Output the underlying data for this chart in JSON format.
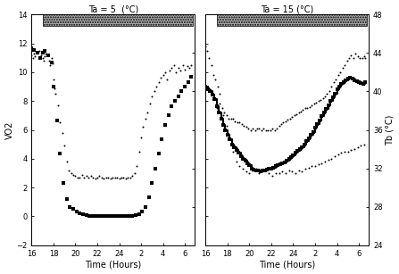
{
  "title_left": "Ta = 5  (°C)",
  "title_right": "Ta = 15 (°C)",
  "xlabel": "Time (Hours)",
  "ylabel_left": "VO2",
  "ylabel_right": "Tb (°C)",
  "panel1_vo2_x": [
    16.0,
    16.1,
    16.2,
    16.3,
    16.5,
    16.7,
    16.9,
    17.0,
    17.1,
    17.2,
    17.3,
    17.5,
    17.6,
    17.7,
    17.8,
    17.9,
    18.0,
    18.1,
    18.2,
    18.4,
    18.6,
    18.8,
    19.0,
    19.2,
    19.4,
    19.6,
    19.8,
    20.0,
    20.2,
    20.4,
    20.6,
    20.8,
    21.0,
    21.2,
    21.4,
    21.6,
    21.8,
    22.0,
    22.2,
    22.4,
    22.6,
    22.8,
    23.0,
    23.2,
    23.4,
    23.6,
    23.8,
    24.0,
    24.2,
    24.4,
    24.6,
    24.8,
    25.0,
    25.2,
    25.4,
    25.6,
    25.8,
    26.0,
    26.2,
    26.4,
    26.6,
    26.8,
    27.0,
    27.2,
    27.4,
    27.6,
    27.8,
    28.0,
    28.2,
    28.4,
    28.6,
    28.8,
    29.0,
    29.2,
    29.4,
    29.6,
    29.8,
    30.0,
    30.2,
    30.4,
    30.6
  ],
  "panel1_vo2_y": [
    11.2,
    11.0,
    11.3,
    11.1,
    11.4,
    11.5,
    11.2,
    11.0,
    10.8,
    11.1,
    11.3,
    11.2,
    10.8,
    10.5,
    11.0,
    10.6,
    9.5,
    8.9,
    8.5,
    7.7,
    6.5,
    5.8,
    4.9,
    3.8,
    3.2,
    3.0,
    2.9,
    2.8,
    2.7,
    2.7,
    2.9,
    2.7,
    2.8,
    2.7,
    2.8,
    2.7,
    2.6,
    2.7,
    2.8,
    2.7,
    2.6,
    2.7,
    2.7,
    2.6,
    2.7,
    2.7,
    2.7,
    2.6,
    2.7,
    2.7,
    2.6,
    2.7,
    2.7,
    2.8,
    3.0,
    3.5,
    4.5,
    5.5,
    6.2,
    6.8,
    7.2,
    7.8,
    8.3,
    8.7,
    9.0,
    9.3,
    9.6,
    9.8,
    10.0,
    9.5,
    10.1,
    10.3,
    10.5,
    10.0,
    10.3,
    10.1,
    10.5,
    10.2,
    10.4,
    10.3,
    10.5
  ],
  "panel1_tb_x": [
    16.0,
    16.2,
    16.5,
    16.8,
    17.0,
    17.2,
    17.5,
    17.8,
    18.0,
    18.3,
    18.6,
    18.9,
    19.2,
    19.5,
    19.8,
    20.1,
    20.4,
    20.7,
    21.0,
    21.3,
    21.6,
    21.9,
    22.2,
    22.5,
    22.8,
    23.1,
    23.4,
    23.7,
    24.0,
    24.3,
    24.6,
    24.9,
    25.2,
    25.5,
    25.8,
    26.1,
    26.4,
    26.7,
    27.0,
    27.3,
    27.6,
    27.9,
    28.2,
    28.5,
    28.8,
    29.1,
    29.4,
    29.7,
    30.0,
    30.3,
    30.6
  ],
  "panel1_tb_y": [
    44.5,
    44.3,
    44.0,
    43.5,
    44.0,
    44.2,
    43.8,
    43.0,
    40.5,
    37.0,
    33.5,
    30.5,
    28.8,
    28.0,
    27.8,
    27.5,
    27.3,
    27.2,
    27.1,
    27.0,
    27.0,
    27.0,
    27.0,
    27.0,
    27.0,
    27.0,
    27.0,
    27.0,
    27.0,
    27.0,
    27.0,
    27.0,
    27.0,
    27.1,
    27.2,
    27.5,
    28.0,
    29.0,
    30.5,
    32.0,
    33.5,
    35.0,
    36.5,
    37.5,
    38.5,
    39.0,
    39.5,
    40.0,
    40.5,
    41.0,
    41.5
  ],
  "panel2_vo2_x": [
    16.0,
    16.1,
    16.3,
    16.5,
    16.7,
    16.9,
    17.1,
    17.3,
    17.5,
    17.7,
    17.9,
    18.1,
    18.3,
    18.5,
    18.7,
    18.9,
    19.1,
    19.3,
    19.5,
    19.7,
    19.9,
    20.1,
    20.3,
    20.5,
    20.7,
    20.9,
    21.1,
    21.3,
    21.5,
    21.7,
    21.9,
    22.1,
    22.3,
    22.5,
    22.7,
    22.9,
    23.1,
    23.3,
    23.5,
    23.7,
    23.9,
    24.1,
    24.3,
    24.5,
    24.7,
    24.9,
    25.1,
    25.3,
    25.5,
    25.7,
    25.9,
    26.1,
    26.3,
    26.5,
    26.7,
    26.9,
    27.1,
    27.3,
    27.5,
    27.7,
    27.9,
    28.1,
    28.3,
    28.5,
    28.7,
    28.9,
    29.1,
    29.3,
    29.5,
    29.7,
    29.9,
    30.1,
    30.3,
    30.5,
    30.6
  ],
  "panel2_vo2_y": [
    11.8,
    11.5,
    11.0,
    10.5,
    9.8,
    9.5,
    9.0,
    8.5,
    7.5,
    7.2,
    7.0,
    6.8,
    6.8,
    6.8,
    6.6,
    6.5,
    6.5,
    6.4,
    6.3,
    6.2,
    6.1,
    6.0,
    6.1,
    6.0,
    6.1,
    6.1,
    6.0,
    6.1,
    6.0,
    6.0,
    6.0,
    6.1,
    6.0,
    6.1,
    6.3,
    6.4,
    6.5,
    6.6,
    6.7,
    6.8,
    6.9,
    7.0,
    7.1,
    7.2,
    7.3,
    7.4,
    7.5,
    7.5,
    7.6,
    7.7,
    7.8,
    7.9,
    8.0,
    8.1,
    8.2,
    8.3,
    8.5,
    8.7,
    9.0,
    9.3,
    9.5,
    9.8,
    10.0,
    10.3,
    10.5,
    10.8,
    11.0,
    11.2,
    11.0,
    11.3,
    11.1,
    11.0,
    11.0,
    11.1,
    11.0
  ],
  "panel2_tb_x": [
    16.0,
    16.2,
    16.4,
    16.6,
    16.8,
    17.0,
    17.2,
    17.4,
    17.6,
    17.8,
    18.0,
    18.2,
    18.4,
    18.6,
    18.8,
    19.0,
    19.2,
    19.4,
    19.6,
    19.8,
    20.0,
    20.2,
    20.4,
    20.6,
    20.8,
    21.0,
    21.2,
    21.4,
    21.6,
    21.8,
    22.0,
    22.2,
    22.4,
    22.6,
    22.8,
    23.0,
    23.2,
    23.4,
    23.6,
    23.8,
    24.0,
    24.2,
    24.4,
    24.6,
    24.8,
    25.0,
    25.2,
    25.4,
    25.6,
    25.8,
    26.0,
    26.2,
    26.4,
    26.6,
    26.8,
    27.0,
    27.2,
    27.4,
    27.6,
    27.8,
    28.0,
    28.2,
    28.4,
    28.6,
    28.8,
    29.0,
    29.2,
    29.4,
    29.6,
    29.8,
    30.0,
    30.2,
    30.4,
    30.6
  ],
  "panel2_tb_y": [
    40.5,
    40.2,
    40.0,
    39.7,
    39.2,
    38.5,
    37.8,
    37.2,
    36.5,
    36.0,
    35.5,
    35.0,
    34.5,
    34.2,
    33.9,
    33.6,
    33.3,
    33.0,
    32.8,
    32.5,
    32.3,
    32.0,
    31.9,
    31.8,
    31.8,
    31.7,
    31.8,
    31.8,
    31.9,
    32.0,
    32.0,
    32.1,
    32.2,
    32.3,
    32.4,
    32.5,
    32.6,
    32.8,
    33.0,
    33.2,
    33.4,
    33.6,
    33.8,
    34.0,
    34.2,
    34.5,
    34.8,
    35.1,
    35.5,
    35.8,
    36.2,
    36.6,
    37.0,
    37.4,
    37.8,
    38.2,
    38.6,
    39.0,
    39.4,
    39.8,
    40.2,
    40.5,
    40.8,
    41.0,
    41.2,
    41.3,
    41.4,
    41.3,
    41.2,
    41.1,
    41.0,
    40.9,
    40.8,
    41.0
  ],
  "panel2_scatter_x": [
    17.0,
    17.3,
    17.6,
    17.9,
    18.2,
    18.5,
    18.8,
    19.1,
    19.4,
    19.7,
    20.0,
    20.3,
    20.6,
    20.9,
    21.2,
    21.5,
    21.8,
    22.1,
    22.4,
    22.7,
    23.0,
    23.3,
    23.6,
    23.9,
    24.2,
    24.5,
    24.8,
    25.1,
    25.4,
    25.7,
    26.0,
    26.3,
    26.6,
    26.9,
    27.2,
    27.5,
    27.8,
    28.1,
    28.4,
    28.7,
    29.0,
    29.3,
    29.6,
    29.9,
    30.2,
    30.5
  ],
  "panel2_scatter_y": [
    7.5,
    7.8,
    7.0,
    6.3,
    5.5,
    4.5,
    3.8,
    3.5,
    3.3,
    3.1,
    3.0,
    3.2,
    3.3,
    3.0,
    3.1,
    3.2,
    3.0,
    2.8,
    3.0,
    3.0,
    3.1,
    3.0,
    3.2,
    3.1,
    3.0,
    3.2,
    3.1,
    3.3,
    3.4,
    3.5,
    3.5,
    3.6,
    3.7,
    3.8,
    3.9,
    4.0,
    4.2,
    4.3,
    4.4,
    4.5,
    4.5,
    4.6,
    4.7,
    4.8,
    4.9,
    5.0
  ],
  "hatched_bar_color": "#b0b0b0",
  "dot_color": "black",
  "background": "#ffffff"
}
